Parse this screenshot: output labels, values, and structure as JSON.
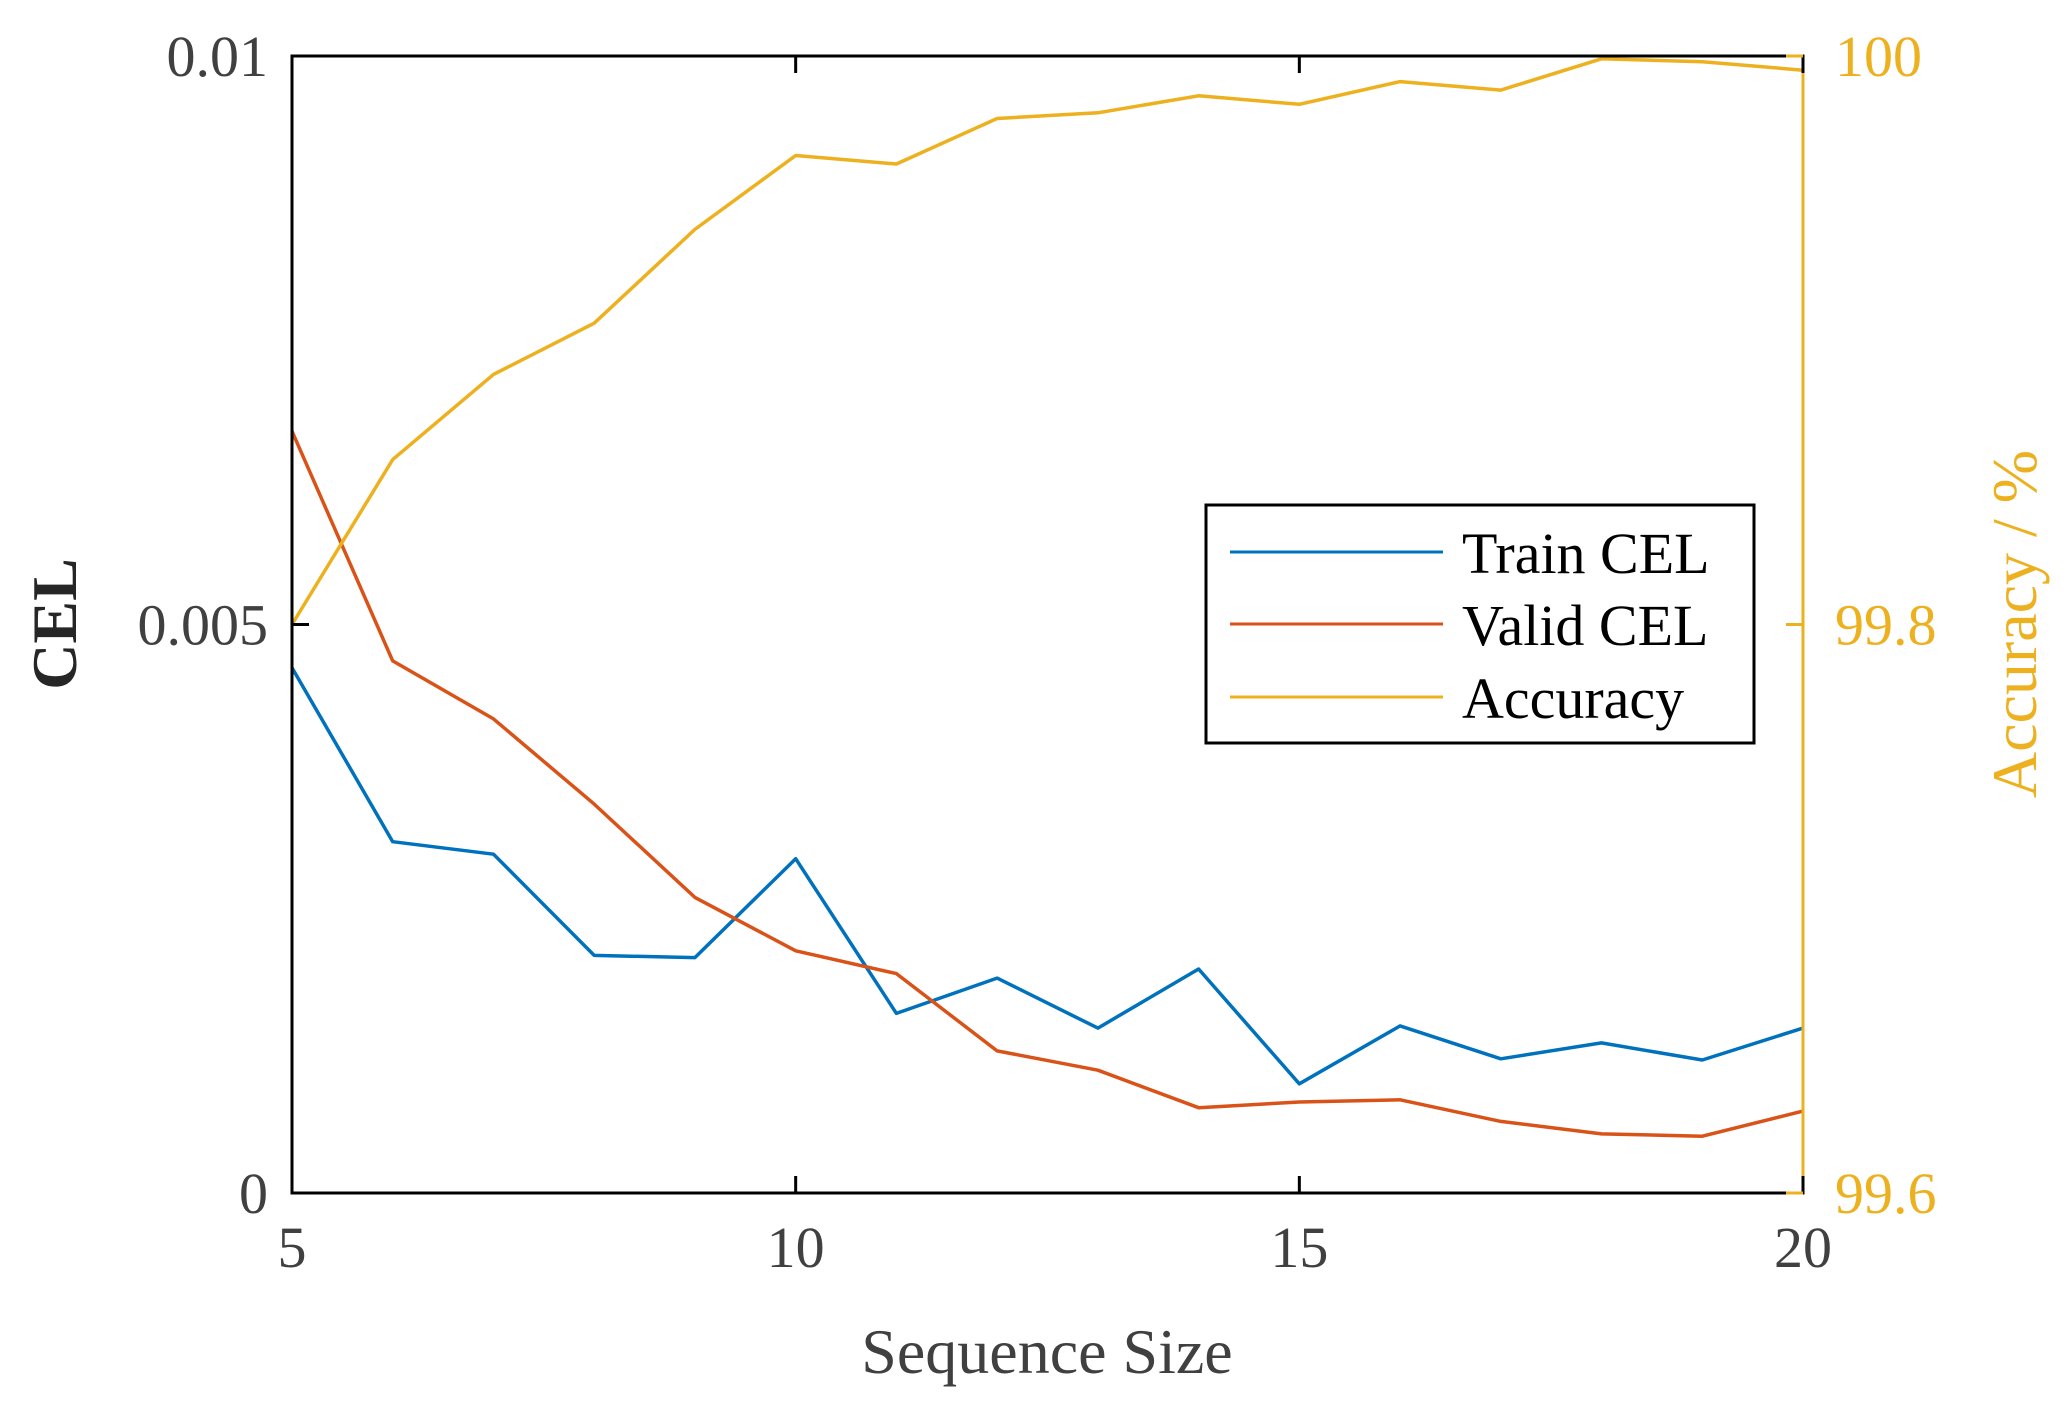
{
  "chart_data": {
    "type": "line",
    "x": [
      5,
      6,
      7,
      8,
      9,
      10,
      11,
      12,
      13,
      14,
      15,
      16,
      17,
      18,
      19,
      20
    ],
    "xlabel": "Sequence Size",
    "ylabel": "CEL",
    "y2label": "Accuracy / %",
    "xlim": [
      5,
      20
    ],
    "ylim": [
      0,
      0.01
    ],
    "y2lim": [
      99.6,
      100
    ],
    "xticks": [
      5,
      10,
      15,
      20
    ],
    "xtick_labels": [
      "5",
      "10",
      "15",
      "20"
    ],
    "yticks": [
      0,
      0.005,
      0.01
    ],
    "ytick_labels": [
      "0",
      "0.005",
      "0.01"
    ],
    "y2ticks": [
      99.6,
      99.8,
      100
    ],
    "y2tick_labels": [
      "99.6",
      "99.8",
      "100"
    ],
    "grid": false,
    "legend_position": "center-right",
    "series": [
      {
        "name": "Train CEL",
        "axis": "left",
        "color": "#0072BD",
        "values": [
          0.00462,
          0.00309,
          0.00298,
          0.00209,
          0.00207,
          0.00294,
          0.00158,
          0.00189,
          0.00145,
          0.00197,
          0.00096,
          0.00147,
          0.00118,
          0.00132,
          0.00117,
          0.00145
        ]
      },
      {
        "name": "Valid CEL",
        "axis": "left",
        "color": "#D95319",
        "values": [
          0.0067,
          0.00468,
          0.00417,
          0.00342,
          0.0026,
          0.00213,
          0.00193,
          0.00125,
          0.00108,
          0.00075,
          0.0008,
          0.00082,
          0.00063,
          0.00052,
          0.0005,
          0.00072
        ]
      },
      {
        "name": "Accuracy",
        "axis": "right",
        "color": "#EDB120",
        "values": [
          99.8,
          99.858,
          99.888,
          99.906,
          99.939,
          99.965,
          99.962,
          99.978,
          99.98,
          99.986,
          99.983,
          99.991,
          99.988,
          99.999,
          99.998,
          99.995
        ]
      }
    ]
  }
}
